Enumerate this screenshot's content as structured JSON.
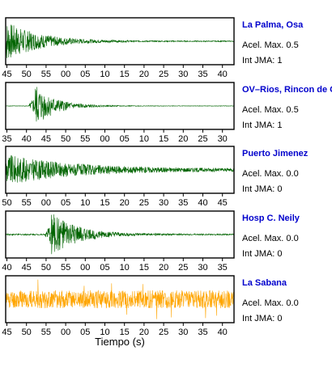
{
  "colors": {
    "normal": "#006400",
    "alert": "#ffa500",
    "station": "#0000cc"
  },
  "chart_data": [
    {
      "type": "line",
      "station": "La Palma, Osa",
      "accel_line": "Acel. Max. 0.5",
      "jma_line": "Int JMA: 1",
      "tick_labels": [
        "45",
        "50",
        "55",
        "00",
        "05",
        "10",
        "15",
        "20",
        "25",
        "30",
        "35",
        "40"
      ],
      "color": "#006400",
      "waveform": {
        "onset": 0.0,
        "peak": 0.92,
        "decay": 7.0,
        "noise": 0.02
      }
    },
    {
      "type": "line",
      "station": "OV–Rios, Rincon de Os",
      "accel_line": "Acel. Max. 0.5",
      "jma_line": "Int JMA: 1",
      "tick_labels": [
        "35",
        "40",
        "45",
        "50",
        "55",
        "00",
        "05",
        "10",
        "15",
        "20",
        "25",
        "30"
      ],
      "color": "#006400",
      "waveform": {
        "onset": 0.13,
        "peak": 0.95,
        "decay": 12.0,
        "noise": 0.01
      }
    },
    {
      "type": "line",
      "station": "Puerto Jimenez",
      "accel_line": "Acel. Max. 0.0",
      "jma_line": "Int JMA: 0",
      "tick_labels": [
        "50",
        "55",
        "00",
        "05",
        "10",
        "15",
        "20",
        "25",
        "30",
        "35",
        "40",
        "45"
      ],
      "color": "#006400",
      "waveform": {
        "onset": 0.0,
        "peak": 0.7,
        "decay": 3.5,
        "noise": 0.06
      }
    },
    {
      "type": "line",
      "station": "Hosp C. Neily",
      "accel_line": "Acel. Max. 0.0",
      "jma_line": "Int JMA: 0",
      "tick_labels": [
        "40",
        "45",
        "50",
        "55",
        "00",
        "05",
        "10",
        "15",
        "20",
        "25",
        "30",
        "35"
      ],
      "color": "#006400",
      "waveform": {
        "onset": 0.2,
        "peak": 0.98,
        "decay": 9.0,
        "noise": 0.03
      }
    },
    {
      "type": "line",
      "station": "La Sabana",
      "accel_line": "Acel. Max. 0.0",
      "jma_line": "Int JMA: 0",
      "tick_labels": [
        "45",
        "50",
        "55",
        "00",
        "05",
        "10",
        "15",
        "20",
        "25",
        "30",
        "35",
        "40"
      ],
      "color": "#ffa500",
      "waveform": {
        "onset": 0.0,
        "peak": 0.4,
        "decay": 0.0,
        "noise": 0.4
      }
    }
  ],
  "xlabel": "Tiempo (s)"
}
